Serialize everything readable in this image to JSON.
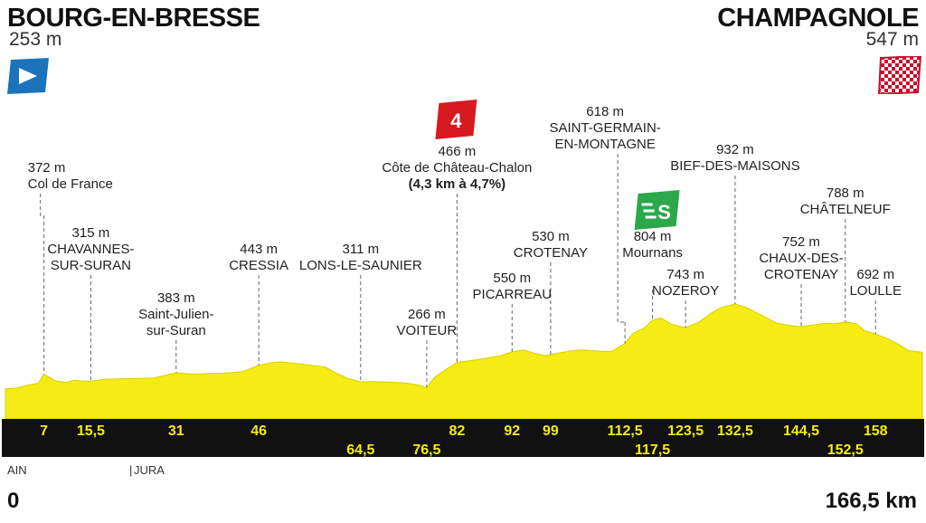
{
  "header": {
    "start_name": "BOURG-EN-BRESSE",
    "start_alt": "253 m",
    "finish_name": "CHAMPAGNOLE",
    "finish_alt": "547 m"
  },
  "footer": {
    "region_1": "AIN",
    "region_2": "JURA",
    "km_start": "0",
    "km_end": "166,5 km"
  },
  "colors": {
    "profile_fill": "#f4ec12",
    "profile_edge": "#d9cf00",
    "baseline_band": "#111111",
    "km_label": "#f4ec12",
    "cat4_badge": "#d71920",
    "sprint_badge": "#2aa84a",
    "start_flag": "#1b74bb",
    "finish_flag": "#c8102e"
  },
  "badges": {
    "climb_category": "4",
    "sprint": "S",
    "start_flag_icon": "start-flag-icon",
    "finish_flag_icon": "checkered-finish-flag-icon"
  },
  "chart_data": {
    "type": "area",
    "title": "",
    "xlabel": "",
    "ylabel": "",
    "xlim": [
      0,
      166.5
    ],
    "ylim": [
      180,
      1000
    ],
    "profile": [
      [
        0,
        253
      ],
      [
        2,
        262
      ],
      [
        4,
        283
      ],
      [
        6,
        300
      ],
      [
        7,
        372
      ],
      [
        9,
        320
      ],
      [
        11,
        305
      ],
      [
        12.5,
        325
      ],
      [
        13.5,
        318
      ],
      [
        15.5,
        315
      ],
      [
        18,
        330
      ],
      [
        21,
        335
      ],
      [
        24,
        338
      ],
      [
        27,
        342
      ],
      [
        31,
        383
      ],
      [
        34,
        372
      ],
      [
        37,
        378
      ],
      [
        40,
        380
      ],
      [
        43,
        392
      ],
      [
        46,
        443
      ],
      [
        48,
        460
      ],
      [
        50,
        470
      ],
      [
        52,
        462
      ],
      [
        54,
        452
      ],
      [
        56,
        440
      ],
      [
        58,
        430
      ],
      [
        60,
        382
      ],
      [
        62,
        340
      ],
      [
        64.5,
        311
      ],
      [
        67,
        312
      ],
      [
        70,
        308
      ],
      [
        73,
        300
      ],
      [
        75,
        285
      ],
      [
        76.5,
        266
      ],
      [
        78,
        350
      ],
      [
        80,
        410
      ],
      [
        82,
        466
      ],
      [
        84,
        478
      ],
      [
        86,
        490
      ],
      [
        88,
        505
      ],
      [
        90,
        520
      ],
      [
        92,
        550
      ],
      [
        94,
        565
      ],
      [
        96,
        540
      ],
      [
        98,
        520
      ],
      [
        99,
        530
      ],
      [
        101,
        545
      ],
      [
        103,
        560
      ],
      [
        105,
        566
      ],
      [
        108,
        556
      ],
      [
        110,
        552
      ],
      [
        112.5,
        618
      ],
      [
        114,
        700
      ],
      [
        116,
        740
      ],
      [
        117.5,
        804
      ],
      [
        119,
        820
      ],
      [
        121,
        770
      ],
      [
        123.5,
        743
      ],
      [
        126,
        790
      ],
      [
        128,
        855
      ],
      [
        130,
        905
      ],
      [
        132.5,
        932
      ],
      [
        134.5,
        905
      ],
      [
        137,
        850
      ],
      [
        140,
        780
      ],
      [
        142.5,
        760
      ],
      [
        144.5,
        752
      ],
      [
        146.5,
        765
      ],
      [
        149,
        778
      ],
      [
        150.5,
        775
      ],
      [
        152.5,
        788
      ],
      [
        154.5,
        775
      ],
      [
        156,
        720
      ],
      [
        158,
        692
      ],
      [
        160,
        660
      ],
      [
        162,
        615
      ],
      [
        164,
        560
      ],
      [
        166.5,
        547
      ]
    ],
    "km_labels_upper": [
      "7",
      "15,5",
      "31",
      "46",
      "82",
      "92",
      "99",
      "112,5",
      "123,5",
      "132,5",
      "144,5",
      "158"
    ],
    "km_labels_lower": [
      "64,5",
      "76,5",
      "117,5",
      "152,5"
    ],
    "points": [
      {
        "km": 7,
        "km_label": "7",
        "row": "upper",
        "name": "Col de France",
        "alt": "372 m"
      },
      {
        "km": 15.5,
        "km_label": "15,5",
        "row": "upper",
        "name": "CHAVANNES-SUR-SURAN",
        "alt": "315 m"
      },
      {
        "km": 31,
        "km_label": "31",
        "row": "upper",
        "name": "Saint-Julien-sur-Suran",
        "alt": "383 m"
      },
      {
        "km": 46,
        "km_label": "46",
        "row": "upper",
        "name": "CRESSIA",
        "alt": "443 m"
      },
      {
        "km": 64.5,
        "km_label": "64,5",
        "row": "lower",
        "name": "LONS-LE-SAUNIER",
        "alt": "311 m"
      },
      {
        "km": 76.5,
        "km_label": "76,5",
        "row": "lower",
        "name": "VOITEUR",
        "alt": "266 m"
      },
      {
        "km": 82,
        "km_label": "82",
        "row": "upper",
        "name": "Côte de Château-Chalon",
        "alt": "466 m",
        "detail": "(4,3 km à 4,7%)"
      },
      {
        "km": 92,
        "km_label": "92",
        "row": "upper",
        "name": "PICARREAU",
        "alt": "550 m"
      },
      {
        "km": 99,
        "km_label": "99",
        "row": "upper",
        "name": "CROTENAY",
        "alt": "530 m"
      },
      {
        "km": 112.5,
        "km_label": "112,5",
        "row": "upper",
        "name": "SAINT-GERMAIN-EN-MONTAGNE",
        "alt": "618 m"
      },
      {
        "km": 117.5,
        "km_label": "117,5",
        "row": "lower",
        "name": "Mournans",
        "alt": "804 m"
      },
      {
        "km": 123.5,
        "km_label": "123,5",
        "row": "upper",
        "name": "NOZEROY",
        "alt": "743 m"
      },
      {
        "km": 132.5,
        "km_label": "132,5",
        "row": "upper",
        "name": "BIEF-DES-MAISONS",
        "alt": "932 m"
      },
      {
        "km": 144.5,
        "km_label": "144,5",
        "row": "upper",
        "name": "CHAUX-DES-CROTENAY",
        "alt": "752 m"
      },
      {
        "km": 152.5,
        "km_label": "152,5",
        "row": "lower",
        "name": "CHÂTELNEUF",
        "alt": "788 m"
      },
      {
        "km": 158,
        "km_label": "158",
        "row": "upper",
        "name": "LOULLE",
        "alt": "692 m"
      }
    ]
  },
  "labels": [
    {
      "alt": "372 m",
      "lines": [
        "Col de France"
      ]
    },
    {
      "alt": "315 m",
      "lines": [
        "CHAVANNES-",
        "SUR-SURAN"
      ]
    },
    {
      "alt": "383 m",
      "lines": [
        "Saint-Julien-",
        "sur-Suran"
      ]
    },
    {
      "alt": "443 m",
      "lines": [
        "CRESSIA"
      ]
    },
    {
      "alt": "311 m",
      "lines": [
        "LONS-LE-SAUNIER"
      ]
    },
    {
      "alt": "266 m",
      "lines": [
        "VOITEUR"
      ]
    },
    {
      "alt": "466 m",
      "lines": [
        "Côte de Château-Chalon"
      ],
      "bold": "(4,3 km à 4,7%)"
    },
    {
      "alt": "550 m",
      "lines": [
        "PICARREAU"
      ]
    },
    {
      "alt": "530 m",
      "lines": [
        "CROTENAY"
      ]
    },
    {
      "alt": "618 m",
      "lines": [
        "SAINT-GERMAIN-",
        "EN-MONTAGNE"
      ]
    },
    {
      "alt": "804 m",
      "lines": [
        "Mournans"
      ]
    },
    {
      "alt": "743 m",
      "lines": [
        "NOZEROY"
      ]
    },
    {
      "alt": "932 m",
      "lines": [
        "BIEF-DES-MAISONS"
      ]
    },
    {
      "alt": "752 m",
      "lines": [
        "CHAUX-DES-",
        "CROTENAY"
      ]
    },
    {
      "alt": "788 m",
      "lines": [
        "CHÂTELNEUF"
      ]
    },
    {
      "alt": "692 m",
      "lines": [
        "LOULLE"
      ]
    }
  ]
}
